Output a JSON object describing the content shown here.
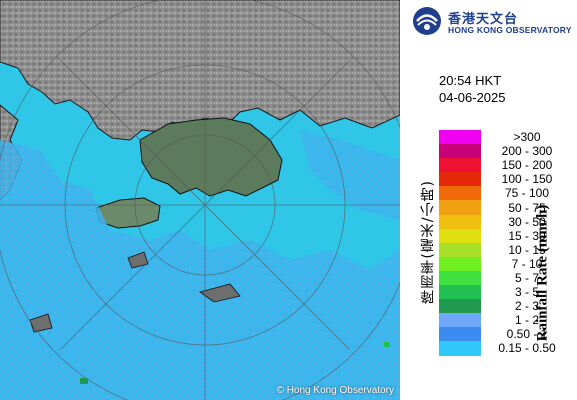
{
  "header": {
    "org_name_zh": "香港天文台",
    "org_name_en": "HONG KONG OBSERVATORY"
  },
  "timestamp": {
    "time": "20:54 HKT",
    "date": "04-06-2025"
  },
  "legend": {
    "title_zh": "降雨率(毫米/小時)",
    "title_en": "Rainfall Rate (mm/h)",
    "items": [
      {
        "label": ">300",
        "color": "#f000f0"
      },
      {
        "label": "200 - 300",
        "color": "#c8007a"
      },
      {
        "label": "150 - 200",
        "color": "#ee1133"
      },
      {
        "label": "100 - 150",
        "color": "#e4290a"
      },
      {
        "label": "75 - 100",
        "color": "#f06a0a"
      },
      {
        "label": "50 - 75",
        "color": "#f0a010"
      },
      {
        "label": "30 - 50",
        "color": "#f0c010"
      },
      {
        "label": "15 - 30",
        "color": "#e0e010"
      },
      {
        "label": "10 - 15",
        "color": "#a8e028"
      },
      {
        "label": "7 - 10",
        "color": "#70f020"
      },
      {
        "label": "5 - 7",
        "color": "#40e040"
      },
      {
        "label": "3 - 5",
        "color": "#20c050"
      },
      {
        "label": "2 - 3",
        "color": "#209850"
      },
      {
        "label": "1 - 2",
        "color": "#6fa8f8"
      },
      {
        "label": "0.50 - 1",
        "color": "#3c8cf0"
      },
      {
        "label": "0.15 - 0.50",
        "color": "#30c8f8"
      }
    ]
  },
  "map": {
    "copyright": "© Hong Kong Observatory"
  }
}
